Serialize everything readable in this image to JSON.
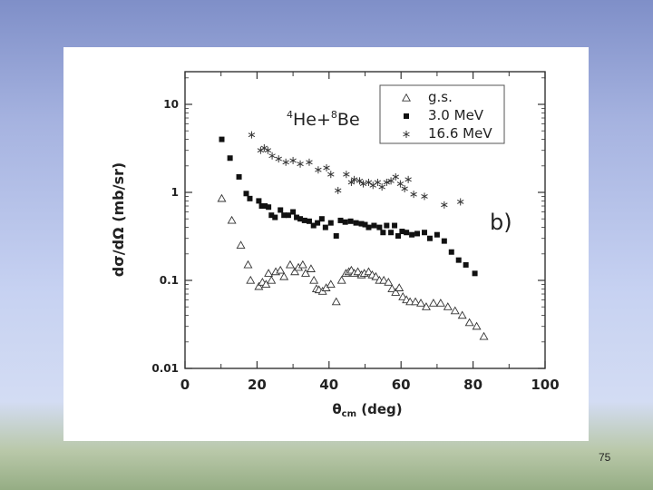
{
  "slide": {
    "number": "75"
  },
  "chart_data": {
    "type": "scatter",
    "title": "",
    "reaction_label": {
      "sup1": "4",
      "a": "He+",
      "sup2": "8",
      "b": "Be"
    },
    "panel_label": "b)",
    "xlabel": {
      "main": "θ",
      "sub": "cm",
      "rest": " (deg)"
    },
    "ylabel": "dσ/dΩ (mb/sr)",
    "xlim": [
      0,
      100
    ],
    "ylim": [
      0.01,
      20
    ],
    "yscale": "log",
    "x_ticks": [
      "0",
      "20",
      "40",
      "60",
      "80",
      "100"
    ],
    "y_ticks": [
      {
        "value": 10,
        "label": "10"
      },
      {
        "value": 1,
        "label": "1"
      },
      {
        "value": 0.1,
        "label": "0.1"
      },
      {
        "value": 0.01,
        "label": "0.01"
      }
    ],
    "legend_position": "top-right",
    "series": [
      {
        "name": "g.s.",
        "marker": "triangle-open",
        "points": [
          [
            10.2,
            0.85
          ],
          [
            13,
            0.48
          ],
          [
            15.5,
            0.25
          ],
          [
            17.5,
            0.15
          ],
          [
            18.2,
            0.1
          ],
          [
            20.5,
            0.085
          ],
          [
            21.5,
            0.095
          ],
          [
            22.5,
            0.09
          ],
          [
            23.2,
            0.12
          ],
          [
            24,
            0.1
          ],
          [
            25.2,
            0.125
          ],
          [
            26.5,
            0.13
          ],
          [
            27.5,
            0.11
          ],
          [
            29.2,
            0.15
          ],
          [
            30.5,
            0.125
          ],
          [
            31.5,
            0.14
          ],
          [
            32.7,
            0.15
          ],
          [
            33.5,
            0.12
          ],
          [
            35,
            0.135
          ],
          [
            35.8,
            0.1
          ],
          [
            36.5,
            0.08
          ],
          [
            37.2,
            0.078
          ],
          [
            38.2,
            0.075
          ],
          [
            39.2,
            0.082
          ],
          [
            40.5,
            0.09
          ],
          [
            42,
            0.057
          ],
          [
            43.5,
            0.1
          ],
          [
            44.7,
            0.12
          ],
          [
            45.5,
            0.125
          ],
          [
            46.2,
            0.13
          ],
          [
            47,
            0.12
          ],
          [
            48,
            0.125
          ],
          [
            49,
            0.115
          ],
          [
            49.8,
            0.12
          ],
          [
            51,
            0.125
          ],
          [
            52,
            0.115
          ],
          [
            53,
            0.11
          ],
          [
            54,
            0.1
          ],
          [
            55.2,
            0.1
          ],
          [
            56.5,
            0.095
          ],
          [
            57.5,
            0.08
          ],
          [
            58.5,
            0.073
          ],
          [
            59.5,
            0.082
          ],
          [
            60.5,
            0.065
          ],
          [
            61.5,
            0.06
          ],
          [
            62.5,
            0.057
          ],
          [
            64,
            0.057
          ],
          [
            65.5,
            0.055
          ],
          [
            67,
            0.05
          ],
          [
            69,
            0.055
          ],
          [
            71,
            0.055
          ],
          [
            73,
            0.05
          ],
          [
            75,
            0.045
          ],
          [
            77,
            0.04
          ],
          [
            79,
            0.033
          ],
          [
            81,
            0.03
          ],
          [
            83,
            0.023
          ]
        ]
      },
      {
        "name": "3.0 MeV",
        "marker": "square-filled",
        "points": [
          [
            10.2,
            4
          ],
          [
            12.5,
            2.45
          ],
          [
            15,
            1.5
          ],
          [
            17,
            0.97
          ],
          [
            18,
            0.85
          ],
          [
            20.5,
            0.8
          ],
          [
            21.3,
            0.7
          ],
          [
            22.2,
            0.7
          ],
          [
            23.2,
            0.68
          ],
          [
            24,
            0.55
          ],
          [
            25,
            0.52
          ],
          [
            26.5,
            0.63
          ],
          [
            27.5,
            0.55
          ],
          [
            28.7,
            0.55
          ],
          [
            30,
            0.6
          ],
          [
            31,
            0.52
          ],
          [
            32,
            0.5
          ],
          [
            33.2,
            0.48
          ],
          [
            34.5,
            0.47
          ],
          [
            35.7,
            0.42
          ],
          [
            36.8,
            0.45
          ],
          [
            38,
            0.5
          ],
          [
            39,
            0.4
          ],
          [
            40.5,
            0.45
          ],
          [
            42,
            0.32
          ],
          [
            43.2,
            0.48
          ],
          [
            44.5,
            0.46
          ],
          [
            46,
            0.47
          ],
          [
            47.5,
            0.45
          ],
          [
            49,
            0.44
          ],
          [
            50,
            0.43
          ],
          [
            51,
            0.4
          ],
          [
            52.5,
            0.42
          ],
          [
            54,
            0.4
          ],
          [
            55,
            0.35
          ],
          [
            56,
            0.42
          ],
          [
            57.2,
            0.35
          ],
          [
            58.2,
            0.42
          ],
          [
            59.2,
            0.32
          ],
          [
            60.3,
            0.36
          ],
          [
            61.5,
            0.35
          ],
          [
            63,
            0.33
          ],
          [
            64.5,
            0.34
          ],
          [
            66.5,
            0.35
          ],
          [
            68,
            0.3
          ],
          [
            70,
            0.33
          ],
          [
            72,
            0.28
          ],
          [
            74,
            0.21
          ],
          [
            76,
            0.17
          ],
          [
            78,
            0.15
          ],
          [
            80.5,
            0.12
          ]
        ]
      },
      {
        "name": "16.6 MeV",
        "marker": "asterisk",
        "points": [
          [
            18.5,
            4.5
          ],
          [
            21,
            3
          ],
          [
            22,
            3.2
          ],
          [
            23,
            3
          ],
          [
            24.2,
            2.6
          ],
          [
            26,
            2.4
          ],
          [
            28,
            2.2
          ],
          [
            30,
            2.3
          ],
          [
            32,
            2.1
          ],
          [
            34.5,
            2.2
          ],
          [
            37,
            1.8
          ],
          [
            39.3,
            1.9
          ],
          [
            40.5,
            1.6
          ],
          [
            42.5,
            1.05
          ],
          [
            44.8,
            1.6
          ],
          [
            46.2,
            1.3
          ],
          [
            47,
            1.4
          ],
          [
            48.5,
            1.35
          ],
          [
            49.5,
            1.25
          ],
          [
            51,
            1.3
          ],
          [
            52.2,
            1.2
          ],
          [
            53.5,
            1.3
          ],
          [
            54.7,
            1.15
          ],
          [
            56,
            1.3
          ],
          [
            57.2,
            1.35
          ],
          [
            58.5,
            1.5
          ],
          [
            59.8,
            1.25
          ],
          [
            61,
            1.1
          ],
          [
            62,
            1.4
          ],
          [
            63.5,
            0.95
          ],
          [
            66.5,
            0.9
          ],
          [
            72,
            0.72
          ],
          [
            76.5,
            0.78
          ]
        ]
      }
    ]
  }
}
